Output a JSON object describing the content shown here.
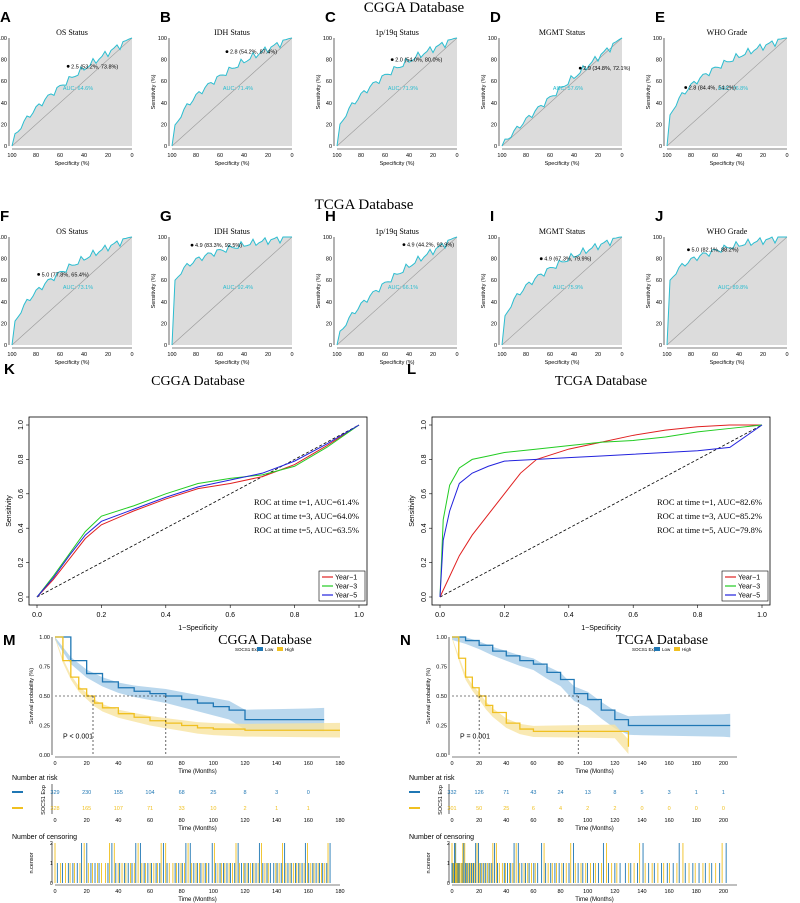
{
  "colors": {
    "cyan": "#2bbdd0",
    "shade": "#dcdcdc",
    "red": "#e02020",
    "green": "#22cc22",
    "blue": "#2222dd",
    "km_low": "#1f77b4",
    "km_high": "#f0c020",
    "km_low_band": "#a8cde8",
    "km_high_band": "#f8e4a0"
  },
  "headers": {
    "cgga": "CGGA Database",
    "tcga": "TCGA Database"
  },
  "common": {
    "xlabel": "Specificity (%)",
    "ylabel": "Sensitivity (%)",
    "roc_xlabel": "1−Specificity",
    "roc_ylabel": "Sensitivity",
    "ticks": [
      "100",
      "80",
      "60",
      "40",
      "20",
      "0"
    ],
    "km_ylabel": "Survival probability (%)",
    "km_xlabel": "Time (Months)",
    "risk_title": "Number at risk",
    "cens_title": "Number of censoring",
    "cens_ylabel": "n.censor",
    "legend_title": "SOCS1 Exp",
    "legend_low": "Low",
    "legend_high": "High",
    "risk_ylabel": "SOCS1 Exp"
  },
  "chart_data": [
    {
      "panel": "A",
      "type": "line",
      "title": "OS Status",
      "annotation": "2.5 (53.2%, 73.8%)",
      "auc": "AUC: 64.6%",
      "point": [
        53.2,
        73.8
      ],
      "xlim": [
        100,
        0
      ],
      "ylim": [
        0,
        100
      ]
    },
    {
      "panel": "B",
      "type": "line",
      "title": "IDH Status",
      "annotation": "2.8 (54.2%, 87.4%)",
      "auc": "AUC: 71.4%",
      "point": [
        54.2,
        87.4
      ],
      "xlim": [
        100,
        0
      ],
      "ylim": [
        0,
        100
      ]
    },
    {
      "panel": "C",
      "type": "line",
      "title": "1p/19q Status",
      "annotation": "2.0 (54.0%, 80.0%)",
      "auc": "AUC: 71.9%",
      "point": [
        54.0,
        80.0
      ],
      "xlim": [
        100,
        0
      ],
      "ylim": [
        0,
        100
      ]
    },
    {
      "panel": "D",
      "type": "line",
      "title": "MGMT Status",
      "annotation": "2.9 (34.8%, 72.1%)",
      "auc": "AUC: 57.6%",
      "point": [
        34.8,
        72.1
      ],
      "xlim": [
        100,
        0
      ],
      "ylim": [
        0,
        100
      ]
    },
    {
      "panel": "E",
      "type": "line",
      "title": "WHO Grade",
      "annotation": "2.8 (84.4%, 54.2%)",
      "auc": "AUC: 76.8%",
      "point": [
        84.4,
        54.2
      ],
      "xlim": [
        100,
        0
      ],
      "ylim": [
        0,
        100
      ]
    },
    {
      "panel": "F",
      "type": "line",
      "title": "OS Status",
      "annotation": "5.0 (77.8%, 65.4%)",
      "auc": "AUC: 73.1%",
      "point": [
        77.8,
        65.4
      ],
      "xlim": [
        100,
        0
      ],
      "ylim": [
        0,
        100
      ]
    },
    {
      "panel": "G",
      "type": "line",
      "title": "IDH Status",
      "annotation": "4.9 (83.3%, 92.5%)",
      "auc": "AUC: 92.4%",
      "point": [
        83.3,
        92.5
      ],
      "xlim": [
        100,
        0
      ],
      "ylim": [
        0,
        100
      ]
    },
    {
      "panel": "H",
      "type": "line",
      "title": "1p/19q Status",
      "annotation": "4.9 (44.2%, 92.9%)",
      "auc": "AUC: 66.1%",
      "point": [
        44.2,
        92.9
      ],
      "xlim": [
        100,
        0
      ],
      "ylim": [
        0,
        100
      ]
    },
    {
      "panel": "I",
      "type": "line",
      "title": "MGMT Status",
      "annotation": "4.9 (67.3%, 79.9%)",
      "auc": "AUC: 75.9%",
      "point": [
        67.3,
        79.9
      ],
      "xlim": [
        100,
        0
      ],
      "ylim": [
        0,
        100
      ]
    },
    {
      "panel": "J",
      "type": "line",
      "title": "WHO Grade",
      "annotation": "5.0 (82.1%, 88.2%)",
      "auc": "AUC: 89.8%",
      "point": [
        82.1,
        88.2
      ],
      "xlim": [
        100,
        0
      ],
      "ylim": [
        0,
        100
      ]
    },
    {
      "panel": "K",
      "type": "line",
      "title": "CGGA Database",
      "xlabel": "1−Specificity",
      "ylabel": "Sensitivity",
      "xticks": [
        "0.0",
        "0.2",
        "0.4",
        "0.6",
        "0.8",
        "1.0"
      ],
      "yticks": [
        "0.0",
        "0.2",
        "0.4",
        "0.6",
        "0.8",
        "1.0"
      ],
      "auc_lines": [
        "ROC at time t=1, AUC=61.4%",
        "ROC at time t=3, AUC=64.0%",
        "ROC at time t=5, AUC=63.5%"
      ],
      "series": [
        {
          "name": "Year−1",
          "color": "#e02020",
          "x": [
            0,
            0.05,
            0.1,
            0.15,
            0.2,
            0.3,
            0.4,
            0.5,
            0.6,
            0.7,
            0.8,
            0.9,
            1
          ],
          "y": [
            0,
            0.1,
            0.22,
            0.34,
            0.42,
            0.5,
            0.57,
            0.63,
            0.66,
            0.7,
            0.77,
            0.88,
            1
          ]
        },
        {
          "name": "Year−3",
          "color": "#22cc22",
          "x": [
            0,
            0.05,
            0.1,
            0.15,
            0.2,
            0.3,
            0.4,
            0.5,
            0.6,
            0.7,
            0.8,
            0.9,
            1
          ],
          "y": [
            0,
            0.12,
            0.25,
            0.38,
            0.47,
            0.53,
            0.6,
            0.66,
            0.69,
            0.71,
            0.76,
            0.87,
            1
          ]
        },
        {
          "name": "Year−5",
          "color": "#2222dd",
          "x": [
            0,
            0.05,
            0.1,
            0.15,
            0.2,
            0.3,
            0.4,
            0.5,
            0.6,
            0.7,
            0.8,
            0.9,
            1
          ],
          "y": [
            0,
            0.11,
            0.24,
            0.36,
            0.44,
            0.51,
            0.58,
            0.64,
            0.68,
            0.72,
            0.79,
            0.89,
            1
          ]
        }
      ],
      "xlim": [
        0,
        1
      ],
      "ylim": [
        0,
        1
      ]
    },
    {
      "panel": "L",
      "type": "line",
      "title": "TCGA Database",
      "xlabel": "1−Specificity",
      "ylabel": "Sensitivity",
      "xticks": [
        "0.0",
        "0.2",
        "0.4",
        "0.6",
        "0.8",
        "1.0"
      ],
      "yticks": [
        "0.0",
        "0.2",
        "0.4",
        "0.6",
        "0.8",
        "1.0"
      ],
      "auc_lines": [
        "ROC at time t=1, AUC=82.6%",
        "ROC at time t=3, AUC=85.2%",
        "ROC at time t=5, AUC=79.8%"
      ],
      "series": [
        {
          "name": "Year−1",
          "color": "#e02020",
          "x": [
            0,
            0.03,
            0.06,
            0.1,
            0.15,
            0.2,
            0.25,
            0.3,
            0.4,
            0.5,
            0.6,
            0.7,
            0.8,
            0.9,
            1
          ],
          "y": [
            0,
            0.12,
            0.24,
            0.36,
            0.48,
            0.6,
            0.72,
            0.8,
            0.86,
            0.9,
            0.94,
            0.97,
            0.99,
            1,
            1
          ]
        },
        {
          "name": "Year−3",
          "color": "#22cc22",
          "x": [
            0,
            0.01,
            0.03,
            0.06,
            0.1,
            0.15,
            0.2,
            0.3,
            0.4,
            0.5,
            0.6,
            0.7,
            0.8,
            0.9,
            1
          ],
          "y": [
            0,
            0.45,
            0.65,
            0.75,
            0.8,
            0.82,
            0.84,
            0.86,
            0.88,
            0.9,
            0.91,
            0.93,
            0.96,
            0.98,
            1
          ]
        },
        {
          "name": "Year−5",
          "color": "#2222dd",
          "x": [
            0,
            0.01,
            0.03,
            0.06,
            0.1,
            0.15,
            0.2,
            0.3,
            0.4,
            0.5,
            0.6,
            0.7,
            0.8,
            0.9,
            1
          ],
          "y": [
            0,
            0.33,
            0.5,
            0.66,
            0.72,
            0.76,
            0.79,
            0.8,
            0.81,
            0.82,
            0.83,
            0.84,
            0.85,
            0.87,
            1
          ]
        }
      ],
      "xlim": [
        0,
        1
      ],
      "ylim": [
        0,
        1
      ]
    },
    {
      "panel": "M",
      "type": "line",
      "title": "CGGA Database",
      "pvalue": "P < 0.001",
      "xticks": [
        "0",
        "20",
        "40",
        "60",
        "80",
        "100",
        "120",
        "140",
        "160",
        "180"
      ],
      "yticks": [
        "0.00",
        "0.25",
        "0.50",
        "0.75",
        "1.00"
      ],
      "xlim": [
        0,
        180
      ],
      "ylim": [
        0,
        1
      ],
      "medians": [
        24,
        70
      ],
      "series": [
        {
          "name": "Low",
          "x": [
            0,
            10,
            20,
            30,
            40,
            50,
            60,
            70,
            80,
            90,
            100,
            110,
            120,
            140,
            160,
            170
          ],
          "y": [
            1,
            0.8,
            0.69,
            0.62,
            0.57,
            0.54,
            0.52,
            0.5,
            0.47,
            0.44,
            0.41,
            0.38,
            0.3,
            0.3,
            0.3,
            0.3
          ]
        },
        {
          "name": "High",
          "x": [
            0,
            5,
            10,
            15,
            20,
            25,
            30,
            40,
            50,
            60,
            70,
            80,
            90,
            100,
            120,
            140,
            160,
            180
          ],
          "y": [
            1,
            0.8,
            0.66,
            0.56,
            0.5,
            0.44,
            0.4,
            0.35,
            0.32,
            0.29,
            0.27,
            0.25,
            0.23,
            0.22,
            0.21,
            0.21,
            0.21,
            0.21
          ]
        }
      ],
      "risk": {
        "times": [
          "0",
          "20",
          "40",
          "60",
          "80",
          "100",
          "120",
          "140",
          "160"
        ],
        "low": [
          "329",
          "230",
          "155",
          "104",
          "68",
          "25",
          "8",
          "3",
          "0"
        ],
        "high": [
          "328",
          "165",
          "107",
          "71",
          "33",
          "10",
          "2",
          "1",
          "1"
        ]
      }
    },
    {
      "panel": "N",
      "type": "line",
      "title": "TCGA Database",
      "pvalue": "P = 0.001",
      "xticks": [
        "0",
        "20",
        "40",
        "60",
        "80",
        "100",
        "120",
        "140",
        "160",
        "180",
        "200"
      ],
      "yticks": [
        "0.00",
        "0.25",
        "0.50",
        "0.75",
        "1.00"
      ],
      "xlim": [
        0,
        210
      ],
      "ylim": [
        0,
        1
      ],
      "medians": [
        20,
        93
      ],
      "series": [
        {
          "name": "Low",
          "x": [
            0,
            10,
            20,
            30,
            40,
            50,
            60,
            70,
            80,
            90,
            100,
            110,
            120,
            130,
            140,
            160,
            180,
            200,
            205
          ],
          "y": [
            1,
            0.97,
            0.93,
            0.88,
            0.84,
            0.8,
            0.77,
            0.7,
            0.64,
            0.52,
            0.47,
            0.38,
            0.3,
            0.25,
            0.25,
            0.25,
            0.25,
            0.25,
            0.25
          ]
        },
        {
          "name": "High",
          "x": [
            0,
            5,
            10,
            15,
            20,
            25,
            30,
            40,
            50,
            60,
            80,
            100,
            120,
            130
          ],
          "y": [
            1,
            0.82,
            0.66,
            0.57,
            0.5,
            0.42,
            0.36,
            0.27,
            0.22,
            0.2,
            0.2,
            0.2,
            0.2,
            0.07
          ]
        }
      ],
      "risk": {
        "times": [
          "0",
          "20",
          "40",
          "60",
          "80",
          "100",
          "120",
          "140",
          "160",
          "180",
          "200"
        ],
        "low": [
          "332",
          "126",
          "71",
          "43",
          "24",
          "13",
          "8",
          "5",
          "3",
          "1",
          "1"
        ],
        "high": [
          "301",
          "50",
          "25",
          "6",
          "4",
          "2",
          "2",
          "0",
          "0",
          "0",
          "0"
        ]
      }
    }
  ]
}
